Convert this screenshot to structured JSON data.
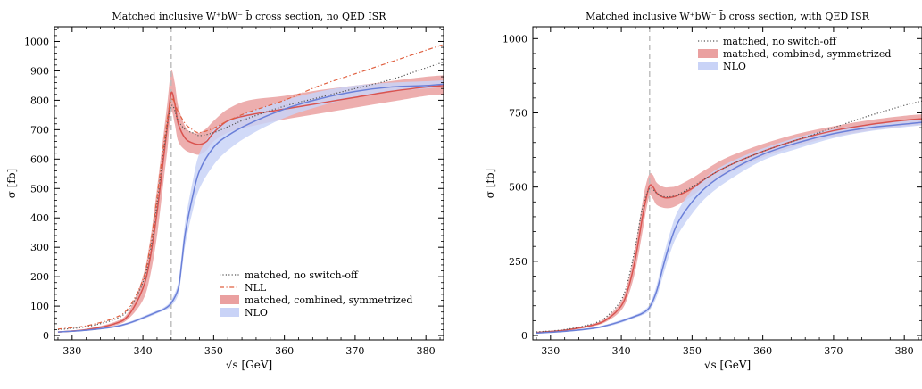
{
  "chart_data": [
    {
      "type": "line",
      "title": "Matched inclusive W⁺bW⁻ b̄ cross section, no QED ISR",
      "xlabel": "√s [GeV]",
      "ylabel": "σ [fb]",
      "xlim": [
        327.5,
        382.5
      ],
      "ylim": [
        -15,
        1050
      ],
      "x_ticks": [
        330,
        340,
        350,
        360,
        370,
        380
      ],
      "y_ticks": [
        0,
        100,
        200,
        300,
        400,
        500,
        600,
        700,
        800,
        900,
        1000
      ],
      "threshold_line_x": 344,
      "legend_position": "lower right",
      "series": [
        {
          "name": "matched, no switch-off",
          "style": "dotted",
          "color": "#555555",
          "x": [
            328,
            332,
            336,
            338,
            340,
            341,
            342,
            343,
            344,
            345,
            346,
            347,
            348,
            350,
            352,
            355,
            360,
            365,
            370,
            375,
            380,
            382.5
          ],
          "y": [
            20,
            30,
            55,
            90,
            180,
            280,
            450,
            640,
            780,
            730,
            700,
            690,
            680,
            690,
            710,
            740,
            780,
            810,
            840,
            870,
            910,
            930
          ]
        },
        {
          "name": "NLL",
          "style": "dashdot",
          "color": "#e06040",
          "x": [
            328,
            332,
            336,
            338,
            340,
            341,
            342,
            343,
            344,
            345,
            346,
            347,
            348,
            350,
            352,
            355,
            360,
            365,
            370,
            375,
            380,
            382.5
          ],
          "y": [
            22,
            33,
            60,
            95,
            190,
            300,
            470,
            660,
            800,
            760,
            720,
            700,
            690,
            705,
            730,
            760,
            800,
            850,
            890,
            930,
            970,
            990
          ]
        },
        {
          "name": "matched, combined, symmetrized",
          "style": "band",
          "color": "#d9534f",
          "band_color": "#eaa0a0",
          "x": [
            328,
            332,
            336,
            338,
            340,
            341,
            342,
            343,
            343.5,
            344,
            344.5,
            345,
            346,
            347,
            348,
            349,
            350,
            352,
            355,
            360,
            365,
            370,
            375,
            380,
            382.5
          ],
          "y": [
            12,
            20,
            40,
            70,
            160,
            260,
            420,
            620,
            720,
            825,
            790,
            720,
            670,
            655,
            650,
            660,
            690,
            730,
            750,
            770,
            790,
            810,
            830,
            845,
            850
          ],
          "y_low": [
            10,
            17,
            34,
            58,
            120,
            200,
            340,
            540,
            640,
            760,
            720,
            660,
            630,
            620,
            615,
            630,
            660,
            690,
            710,
            735,
            755,
            775,
            795,
            815,
            820
          ],
          "y_high": [
            14,
            23,
            46,
            82,
            200,
            320,
            500,
            700,
            800,
            900,
            860,
            780,
            710,
            690,
            690,
            705,
            730,
            770,
            800,
            815,
            835,
            850,
            865,
            880,
            885
          ]
        },
        {
          "name": "NLO",
          "style": "band",
          "color": "#6a7fd8",
          "band_color": "#c9d3f7",
          "x": [
            328,
            332,
            336,
            338,
            340,
            342,
            343,
            344,
            345,
            345.5,
            346,
            347,
            348,
            350,
            352,
            355,
            360,
            365,
            370,
            375,
            380,
            382.5
          ],
          "y": [
            12,
            18,
            30,
            42,
            60,
            80,
            90,
            110,
            160,
            250,
            350,
            470,
            560,
            640,
            680,
            720,
            770,
            805,
            830,
            845,
            850,
            855
          ],
          "y_low": [
            11,
            16,
            27,
            38,
            55,
            75,
            85,
            100,
            140,
            220,
            310,
            420,
            500,
            580,
            630,
            680,
            740,
            780,
            810,
            830,
            840,
            845
          ],
          "y_high": [
            13,
            20,
            33,
            46,
            65,
            85,
            96,
            120,
            180,
            280,
            390,
            520,
            620,
            700,
            730,
            760,
            800,
            830,
            850,
            860,
            865,
            868
          ]
        }
      ]
    },
    {
      "type": "line",
      "title": "Matched inclusive W⁺bW⁻ b̄ cross section, with QED ISR",
      "xlabel": "√s [GeV]",
      "ylabel": "σ [fb]",
      "xlim": [
        327.5,
        382.5
      ],
      "ylim": [
        -15,
        1040
      ],
      "x_ticks": [
        330,
        340,
        350,
        360,
        370,
        380
      ],
      "y_ticks": [
        0,
        250,
        500,
        750,
        1000
      ],
      "threshold_line_x": 344,
      "legend_position": "upper right",
      "series": [
        {
          "name": "matched, no switch-off",
          "style": "dotted",
          "color": "#555555",
          "x": [
            328,
            332,
            336,
            338,
            340,
            341,
            342,
            343,
            344,
            345,
            346,
            347,
            348,
            350,
            352,
            355,
            360,
            365,
            370,
            375,
            380,
            382.5
          ],
          "y": [
            12,
            20,
            40,
            65,
            120,
            190,
            300,
            430,
            495,
            480,
            468,
            468,
            475,
            500,
            530,
            570,
            620,
            660,
            700,
            740,
            775,
            790
          ]
        },
        {
          "name": "matched, combined, symmetrized",
          "style": "band",
          "color": "#d9534f",
          "band_color": "#eaa0a0",
          "x": [
            328,
            332,
            336,
            338,
            340,
            341,
            342,
            343,
            343.5,
            344,
            344.5,
            345,
            346,
            347,
            348,
            350,
            352,
            355,
            360,
            365,
            370,
            375,
            380,
            382.5
          ],
          "y": [
            10,
            18,
            35,
            55,
            100,
            160,
            260,
            400,
            460,
            505,
            500,
            480,
            465,
            465,
            472,
            495,
            530,
            570,
            620,
            660,
            690,
            710,
            725,
            730
          ],
          "y_low": [
            9,
            16,
            31,
            48,
            85,
            135,
            220,
            350,
            420,
            470,
            460,
            440,
            430,
            430,
            440,
            470,
            505,
            545,
            600,
            640,
            670,
            690,
            705,
            710
          ],
          "y_high": [
            11,
            20,
            39,
            62,
            115,
            185,
            300,
            450,
            510,
            545,
            540,
            515,
            500,
            500,
            505,
            530,
            560,
            600,
            645,
            680,
            705,
            725,
            740,
            745
          ]
        },
        {
          "name": "NLO",
          "style": "band",
          "color": "#6a7fd8",
          "band_color": "#c9d3f7",
          "x": [
            328,
            332,
            336,
            338,
            340,
            342,
            343,
            344,
            345,
            346,
            347,
            348,
            350,
            352,
            355,
            360,
            365,
            370,
            375,
            380,
            382.5
          ],
          "y": [
            8,
            14,
            24,
            34,
            48,
            65,
            75,
            95,
            150,
            240,
            320,
            380,
            450,
            500,
            550,
            610,
            650,
            680,
            700,
            712,
            718
          ],
          "y_low": [
            7,
            12,
            21,
            30,
            43,
            60,
            69,
            85,
            130,
            210,
            285,
            340,
            410,
            465,
            520,
            590,
            630,
            665,
            688,
            702,
            708
          ],
          "y_high": [
            9,
            16,
            27,
            38,
            53,
            70,
            82,
            105,
            170,
            270,
            355,
            420,
            490,
            535,
            580,
            630,
            668,
            695,
            712,
            722,
            728
          ]
        }
      ]
    }
  ]
}
